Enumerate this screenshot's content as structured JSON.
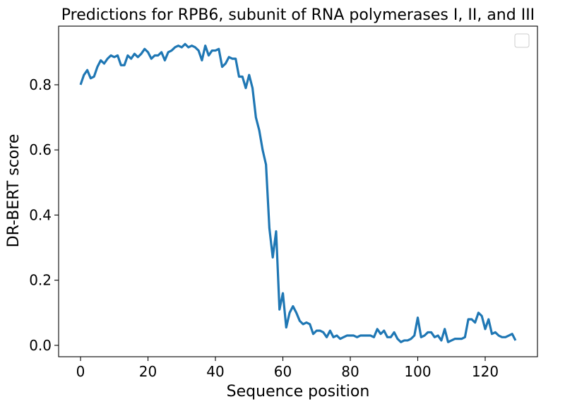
{
  "chart_data": {
    "type": "line",
    "title": "Predictions for RPB6, subunit of RNA polymerases I, II, and III",
    "xlabel": "Sequence position",
    "ylabel": "DR-BERT score",
    "xlim": [
      -6.5,
      135.5
    ],
    "ylim": [
      -0.035,
      0.98
    ],
    "xticks": [
      0,
      20,
      40,
      60,
      80,
      100,
      120
    ],
    "xtick_labels": [
      "0",
      "20",
      "40",
      "60",
      "80",
      "100",
      "120"
    ],
    "yticks": [
      0.0,
      0.2,
      0.4,
      0.6,
      0.8
    ],
    "ytick_labels": [
      "0.0",
      "0.2",
      "0.4",
      "0.6",
      "0.8"
    ],
    "grid": false,
    "legend": {
      "placement": "top-right",
      "entries": []
    },
    "series": [
      {
        "color": "#1f77b4",
        "x": [
          0,
          1,
          2,
          3,
          4,
          5,
          6,
          7,
          8,
          9,
          10,
          11,
          12,
          13,
          14,
          15,
          16,
          17,
          18,
          19,
          20,
          21,
          22,
          23,
          24,
          25,
          26,
          27,
          28,
          29,
          30,
          31,
          32,
          33,
          34,
          35,
          36,
          37,
          38,
          39,
          40,
          41,
          42,
          43,
          44,
          45,
          46,
          47,
          48,
          49,
          50,
          51,
          52,
          53,
          54,
          55,
          56,
          57,
          58,
          59,
          60,
          61,
          62,
          63,
          64,
          65,
          66,
          67,
          68,
          69,
          70,
          71,
          72,
          73,
          74,
          75,
          76,
          77,
          78,
          79,
          80,
          81,
          82,
          83,
          84,
          85,
          86,
          87,
          88,
          89,
          90,
          91,
          92,
          93,
          94,
          95,
          96,
          97,
          98,
          99,
          100,
          101,
          102,
          103,
          104,
          105,
          106,
          107,
          108,
          109,
          110,
          111,
          112,
          113,
          114,
          115,
          116,
          117,
          118,
          119,
          120,
          121,
          122,
          123,
          124,
          125,
          126,
          127,
          128,
          129
        ],
        "y": [
          0.8,
          0.83,
          0.845,
          0.82,
          0.825,
          0.855,
          0.875,
          0.865,
          0.88,
          0.89,
          0.885,
          0.89,
          0.86,
          0.86,
          0.89,
          0.88,
          0.895,
          0.885,
          0.895,
          0.91,
          0.9,
          0.88,
          0.89,
          0.89,
          0.9,
          0.875,
          0.9,
          0.905,
          0.915,
          0.92,
          0.915,
          0.925,
          0.915,
          0.92,
          0.915,
          0.905,
          0.875,
          0.92,
          0.89,
          0.905,
          0.905,
          0.91,
          0.855,
          0.865,
          0.885,
          0.88,
          0.88,
          0.825,
          0.825,
          0.79,
          0.83,
          0.79,
          0.7,
          0.66,
          0.6,
          0.555,
          0.36,
          0.27,
          0.35,
          0.11,
          0.16,
          0.055,
          0.1,
          0.12,
          0.1,
          0.075,
          0.065,
          0.07,
          0.065,
          0.035,
          0.045,
          0.045,
          0.04,
          0.025,
          0.045,
          0.025,
          0.03,
          0.02,
          0.025,
          0.03,
          0.03,
          0.03,
          0.025,
          0.03,
          0.03,
          0.03,
          0.03,
          0.025,
          0.05,
          0.035,
          0.045,
          0.025,
          0.025,
          0.04,
          0.02,
          0.01,
          0.015,
          0.015,
          0.02,
          0.03,
          0.085,
          0.025,
          0.03,
          0.04,
          0.04,
          0.025,
          0.03,
          0.015,
          0.05,
          0.01,
          0.015,
          0.02,
          0.02,
          0.02,
          0.025,
          0.08,
          0.08,
          0.07,
          0.1,
          0.09,
          0.05,
          0.08,
          0.035,
          0.04,
          0.03,
          0.025,
          0.025,
          0.03,
          0.035,
          0.015
        ]
      }
    ]
  }
}
